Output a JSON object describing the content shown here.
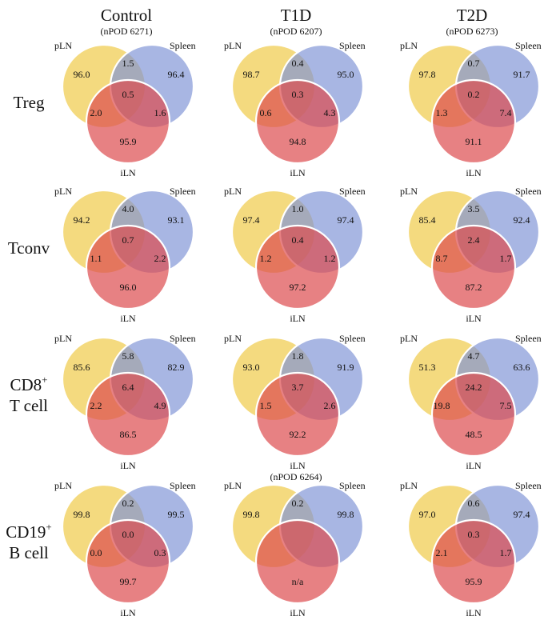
{
  "colors": {
    "pLN": "#efc843",
    "Spleen": "#7f93d6",
    "iLN": "#dd4c4f"
  },
  "set_labels": {
    "pLN": "pLN",
    "Spleen": "Spleen",
    "iLN": "iLN"
  },
  "columns": [
    {
      "title": "Control",
      "subtitle": "(nPOD 6271)"
    },
    {
      "title": "T1D",
      "subtitle": "(nPOD 6207)"
    },
    {
      "title": "T2D",
      "subtitle": "(nPOD 6273)"
    }
  ],
  "rows": [
    {
      "label": "Treg",
      "label_sup": "",
      "label_line2": "",
      "note": ""
    },
    {
      "label": "Tconv",
      "label_sup": "",
      "label_line2": "",
      "note": ""
    },
    {
      "label": "CD8",
      "label_sup": "+",
      "label_line2": "T cell",
      "note": ""
    },
    {
      "label": "CD19",
      "label_sup": "+",
      "label_line2": "B cell",
      "note": "(nPOD 6264)"
    }
  ],
  "venns": [
    [
      {
        "pLN_only": "96.0",
        "Spleen_only": "96.4",
        "iLN_only": "95.9",
        "pLN_Spleen": "1.5",
        "pLN_iLN": "2.0",
        "Spleen_iLN": "1.6",
        "all": "0.5"
      },
      {
        "pLN_only": "98.7",
        "Spleen_only": "95.0",
        "iLN_only": "94.8",
        "pLN_Spleen": "0.4",
        "pLN_iLN": "0.6",
        "Spleen_iLN": "4.3",
        "all": "0.3"
      },
      {
        "pLN_only": "97.8",
        "Spleen_only": "91.7",
        "iLN_only": "91.1",
        "pLN_Spleen": "0.7",
        "pLN_iLN": "1.3",
        "Spleen_iLN": "7.4",
        "all": "0.2"
      }
    ],
    [
      {
        "pLN_only": "94.2",
        "Spleen_only": "93.1",
        "iLN_only": "96.0",
        "pLN_Spleen": "4.0",
        "pLN_iLN": "1.1",
        "Spleen_iLN": "2.2",
        "all": "0.7"
      },
      {
        "pLN_only": "97.4",
        "Spleen_only": "97.4",
        "iLN_only": "97.2",
        "pLN_Spleen": "1.0",
        "pLN_iLN": "1.2",
        "Spleen_iLN": "1.2",
        "all": "0.4"
      },
      {
        "pLN_only": "85.4",
        "Spleen_only": "92.4",
        "iLN_only": "87.2",
        "pLN_Spleen": "3.5",
        "pLN_iLN": "8.7",
        "Spleen_iLN": "1.7",
        "all": "2.4"
      }
    ],
    [
      {
        "pLN_only": "85.6",
        "Spleen_only": "82.9",
        "iLN_only": "86.5",
        "pLN_Spleen": "5.8",
        "pLN_iLN": "2.2",
        "Spleen_iLN": "4.9",
        "all": "6.4"
      },
      {
        "pLN_only": "93.0",
        "Spleen_only": "91.9",
        "iLN_only": "92.2",
        "pLN_Spleen": "1.8",
        "pLN_iLN": "1.5",
        "Spleen_iLN": "2.6",
        "all": "3.7"
      },
      {
        "pLN_only": "51.3",
        "Spleen_only": "63.6",
        "iLN_only": "48.5",
        "pLN_Spleen": "4.7",
        "pLN_iLN": "19.8",
        "Spleen_iLN": "7.5",
        "all": "24.2"
      }
    ],
    [
      {
        "pLN_only": "99.8",
        "Spleen_only": "99.5",
        "iLN_only": "99.7",
        "pLN_Spleen": "0.2",
        "pLN_iLN": "0.0",
        "Spleen_iLN": "0.3",
        "all": "0.0"
      },
      {
        "pLN_only": "99.8",
        "Spleen_only": "99.8",
        "iLN_only": "n/a",
        "pLN_Spleen": "0.2",
        "pLN_iLN": "",
        "Spleen_iLN": "",
        "all": ""
      },
      {
        "pLN_only": "97.0",
        "Spleen_only": "97.4",
        "iLN_only": "95.9",
        "pLN_Spleen": "0.6",
        "pLN_iLN": "2.1",
        "Spleen_iLN": "1.7",
        "all": "0.3"
      }
    ]
  ]
}
